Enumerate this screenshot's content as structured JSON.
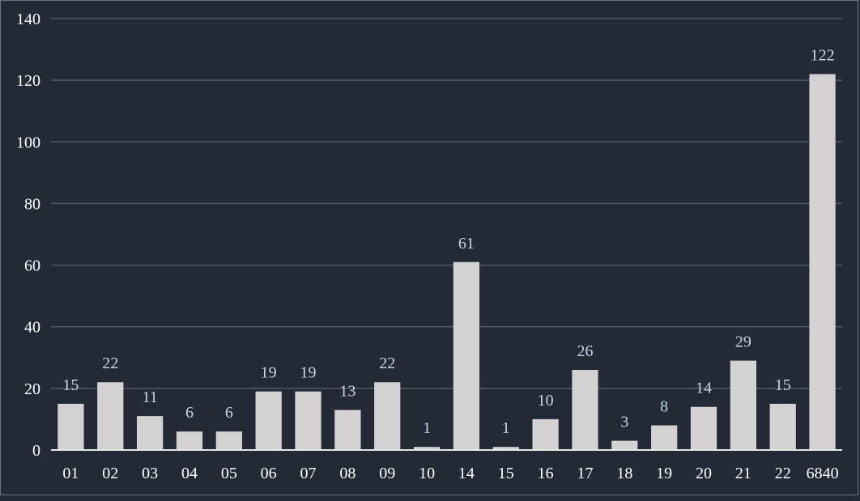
{
  "chart_data": {
    "type": "bar",
    "title": "",
    "xlabel": "",
    "ylabel": "",
    "categories": [
      "01",
      "02",
      "03",
      "04",
      "05",
      "06",
      "07",
      "08",
      "09",
      "10",
      "14",
      "15",
      "16",
      "17",
      "18",
      "19",
      "20",
      "21",
      "22",
      "6840"
    ],
    "values": [
      15,
      22,
      11,
      6,
      6,
      19,
      19,
      13,
      22,
      1,
      61,
      1,
      10,
      26,
      3,
      8,
      14,
      29,
      15,
      122
    ],
    "ylim": [
      0,
      140
    ],
    "yticks": [
      0,
      20,
      40,
      60,
      80,
      100,
      120,
      140
    ],
    "grid": true,
    "data_labels": true,
    "colors": {
      "background": "#232a35",
      "bar": "#d3d1d2",
      "grid": "#4f5766",
      "axis_text": "#ffffff",
      "data_label": "#c6d4ec",
      "axis_line": "#e6e6e6"
    }
  }
}
